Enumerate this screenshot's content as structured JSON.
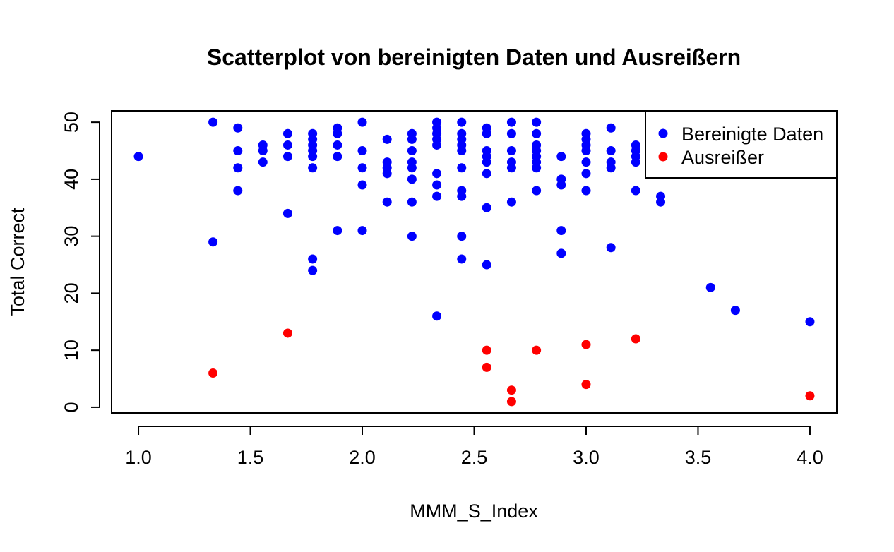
{
  "chart_data": {
    "type": "scatter",
    "title": "Scatterplot von bereinigten Daten und Ausreißern",
    "xlabel": "MMM_S_Index",
    "ylabel": "Total Correct",
    "xlim": [
      0.88,
      4.12
    ],
    "ylim": [
      -1,
      52
    ],
    "x_ticks": [
      1.0,
      1.5,
      2.0,
      2.5,
      3.0,
      3.5,
      4.0
    ],
    "x_tick_labels": [
      "1.0",
      "1.5",
      "2.0",
      "2.5",
      "3.0",
      "3.5",
      "4.0"
    ],
    "y_ticks": [
      0,
      10,
      20,
      30,
      40,
      50
    ],
    "y_tick_labels": [
      "0",
      "10",
      "20",
      "30",
      "40",
      "50"
    ],
    "grid": false,
    "legend": {
      "position": "top-right",
      "entries": [
        "Bereinigte Daten",
        "Ausreißer"
      ]
    },
    "series": [
      {
        "name": "Bereinigte Daten",
        "color": "#0000ff",
        "points": [
          [
            1.0,
            44
          ],
          [
            1.333,
            50
          ],
          [
            1.333,
            29
          ],
          [
            1.444,
            49
          ],
          [
            1.444,
            45
          ],
          [
            1.444,
            42
          ],
          [
            1.444,
            38
          ],
          [
            1.556,
            46
          ],
          [
            1.556,
            45
          ],
          [
            1.556,
            43
          ],
          [
            1.667,
            48
          ],
          [
            1.667,
            46
          ],
          [
            1.667,
            44
          ],
          [
            1.667,
            34
          ],
          [
            1.778,
            48
          ],
          [
            1.778,
            47
          ],
          [
            1.778,
            46
          ],
          [
            1.778,
            45
          ],
          [
            1.778,
            44
          ],
          [
            1.778,
            42
          ],
          [
            1.778,
            26
          ],
          [
            1.778,
            24
          ],
          [
            1.889,
            49
          ],
          [
            1.889,
            48
          ],
          [
            1.889,
            46
          ],
          [
            1.889,
            44
          ],
          [
            1.889,
            31
          ],
          [
            2.0,
            50
          ],
          [
            2.0,
            45
          ],
          [
            2.0,
            42
          ],
          [
            2.0,
            39
          ],
          [
            2.0,
            31
          ],
          [
            2.111,
            47
          ],
          [
            2.111,
            43
          ],
          [
            2.111,
            42
          ],
          [
            2.111,
            41
          ],
          [
            2.111,
            36
          ],
          [
            2.222,
            48
          ],
          [
            2.222,
            47
          ],
          [
            2.222,
            45
          ],
          [
            2.222,
            43
          ],
          [
            2.222,
            42
          ],
          [
            2.222,
            40
          ],
          [
            2.222,
            36
          ],
          [
            2.222,
            30
          ],
          [
            2.333,
            50
          ],
          [
            2.333,
            49
          ],
          [
            2.333,
            48
          ],
          [
            2.333,
            47
          ],
          [
            2.333,
            46
          ],
          [
            2.333,
            41
          ],
          [
            2.333,
            39
          ],
          [
            2.333,
            37
          ],
          [
            2.333,
            16
          ],
          [
            2.444,
            50
          ],
          [
            2.444,
            48
          ],
          [
            2.444,
            47
          ],
          [
            2.444,
            46
          ],
          [
            2.444,
            45
          ],
          [
            2.444,
            42
          ],
          [
            2.444,
            38
          ],
          [
            2.444,
            37
          ],
          [
            2.444,
            30
          ],
          [
            2.444,
            26
          ],
          [
            2.556,
            49
          ],
          [
            2.556,
            48
          ],
          [
            2.556,
            45
          ],
          [
            2.556,
            44
          ],
          [
            2.556,
            43
          ],
          [
            2.556,
            41
          ],
          [
            2.556,
            35
          ],
          [
            2.556,
            25
          ],
          [
            2.667,
            50
          ],
          [
            2.667,
            48
          ],
          [
            2.667,
            45
          ],
          [
            2.667,
            43
          ],
          [
            2.667,
            42
          ],
          [
            2.667,
            36
          ],
          [
            2.778,
            50
          ],
          [
            2.778,
            48
          ],
          [
            2.778,
            46
          ],
          [
            2.778,
            45
          ],
          [
            2.778,
            44
          ],
          [
            2.778,
            43
          ],
          [
            2.778,
            42
          ],
          [
            2.778,
            38
          ],
          [
            2.889,
            44
          ],
          [
            2.889,
            40
          ],
          [
            2.889,
            39
          ],
          [
            2.889,
            31
          ],
          [
            2.889,
            27
          ],
          [
            3.0,
            48
          ],
          [
            3.0,
            47
          ],
          [
            3.0,
            46
          ],
          [
            3.0,
            45
          ],
          [
            3.0,
            43
          ],
          [
            3.0,
            41
          ],
          [
            3.0,
            38
          ],
          [
            3.111,
            49
          ],
          [
            3.111,
            45
          ],
          [
            3.111,
            43
          ],
          [
            3.111,
            42
          ],
          [
            3.111,
            28
          ],
          [
            3.222,
            46
          ],
          [
            3.222,
            45
          ],
          [
            3.222,
            44
          ],
          [
            3.222,
            43
          ],
          [
            3.222,
            38
          ],
          [
            3.333,
            37
          ],
          [
            3.333,
            36
          ],
          [
            3.556,
            21
          ],
          [
            3.667,
            17
          ],
          [
            4.0,
            15
          ]
        ]
      },
      {
        "name": "Ausreißer",
        "color": "#ff0000",
        "points": [
          [
            1.333,
            6
          ],
          [
            1.667,
            13
          ],
          [
            2.556,
            10
          ],
          [
            2.556,
            7
          ],
          [
            2.667,
            3
          ],
          [
            2.667,
            1
          ],
          [
            2.778,
            10
          ],
          [
            3.0,
            11
          ],
          [
            3.0,
            4
          ],
          [
            3.222,
            12
          ],
          [
            4.0,
            2
          ]
        ]
      }
    ]
  }
}
